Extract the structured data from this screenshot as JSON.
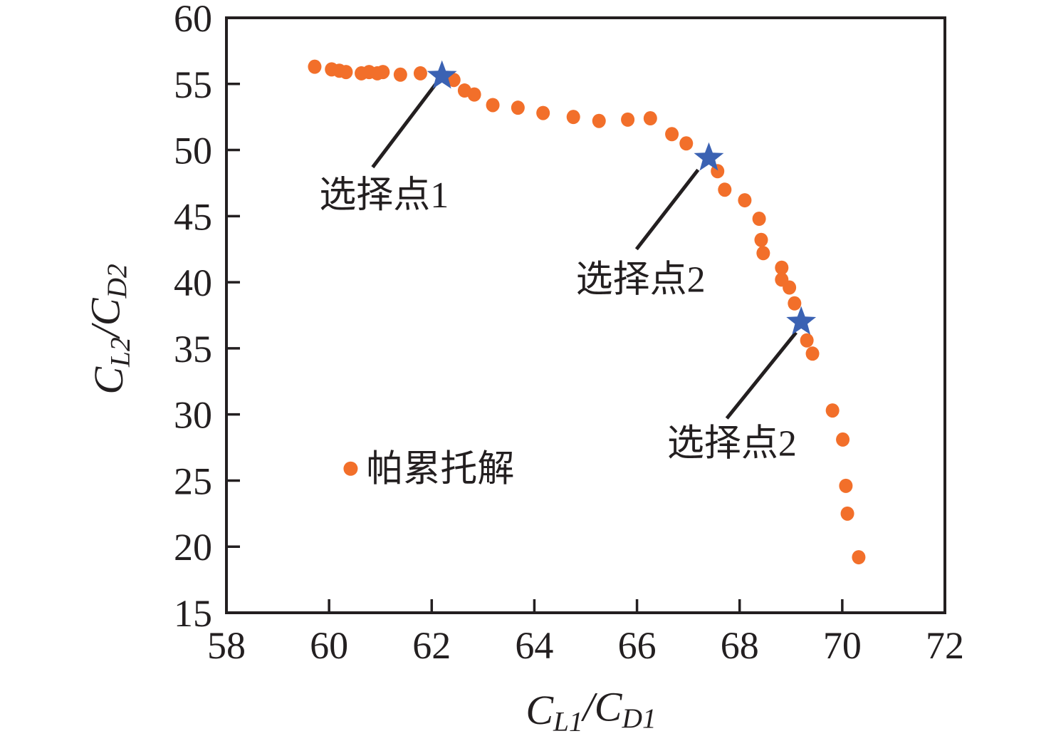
{
  "chart_data": {
    "type": "scatter",
    "xlabel": "C_L1/C_D1",
    "ylabel": "C_L2/C_D2",
    "xlabel_parts": [
      {
        "t": "C",
        "s": "i"
      },
      {
        "t": "L1",
        "s": "sub"
      },
      {
        "t": "/",
        "s": "i"
      },
      {
        "t": "C",
        "s": "i"
      },
      {
        "t": "D1",
        "s": "sub"
      }
    ],
    "ylabel_parts": [
      {
        "t": "C",
        "s": "i"
      },
      {
        "t": "L2",
        "s": "sub"
      },
      {
        "t": "/",
        "s": "i"
      },
      {
        "t": "C",
        "s": "i"
      },
      {
        "t": "D2",
        "s": "sub"
      }
    ],
    "xlim": [
      58,
      72
    ],
    "ylim": [
      15,
      60
    ],
    "x_ticks": [
      58,
      60,
      62,
      64,
      66,
      68,
      70,
      72
    ],
    "y_ticks": [
      15,
      20,
      25,
      30,
      35,
      40,
      45,
      50,
      55,
      60
    ],
    "grid": false,
    "legend_position": "inside-left-middle",
    "series": [
      {
        "name": "帕累托解",
        "marker": "circle",
        "color": "#F26F2A",
        "points": [
          [
            59.72,
            56.3
          ],
          [
            60.05,
            56.1
          ],
          [
            60.2,
            56.0
          ],
          [
            60.33,
            55.9
          ],
          [
            60.63,
            55.8
          ],
          [
            60.78,
            55.9
          ],
          [
            60.94,
            55.8
          ],
          [
            61.05,
            55.9
          ],
          [
            61.39,
            55.7
          ],
          [
            61.78,
            55.8
          ],
          [
            62.43,
            55.3
          ],
          [
            62.64,
            54.5
          ],
          [
            62.83,
            54.2
          ],
          [
            63.19,
            53.4
          ],
          [
            63.68,
            53.2
          ],
          [
            64.17,
            52.8
          ],
          [
            64.76,
            52.5
          ],
          [
            65.26,
            52.2
          ],
          [
            65.82,
            52.3
          ],
          [
            66.26,
            52.4
          ],
          [
            66.68,
            51.2
          ],
          [
            66.96,
            50.5
          ],
          [
            67.57,
            48.4
          ],
          [
            67.71,
            47.0
          ],
          [
            68.1,
            46.2
          ],
          [
            68.38,
            44.8
          ],
          [
            68.42,
            43.2
          ],
          [
            68.46,
            42.2
          ],
          [
            68.82,
            41.1
          ],
          [
            68.82,
            40.2
          ],
          [
            68.97,
            39.6
          ],
          [
            69.07,
            38.4
          ],
          [
            69.31,
            35.6
          ],
          [
            69.42,
            34.6
          ],
          [
            69.81,
            30.3
          ],
          [
            70.01,
            28.1
          ],
          [
            70.07,
            24.6
          ],
          [
            70.1,
            22.5
          ],
          [
            70.32,
            19.2
          ]
        ]
      },
      {
        "name": "选择点",
        "marker": "star",
        "color": "#3B62B3",
        "points": [
          [
            62.2,
            55.6
          ],
          [
            67.4,
            49.4
          ],
          [
            69.2,
            37.0
          ]
        ]
      }
    ],
    "annotations": [
      {
        "text": "选择点1",
        "target": [
          62.2,
          55.6
        ],
        "label_pos": [
          61.07,
          46.7
        ],
        "line": [
          [
            62.08,
            55.0
          ],
          [
            60.85,
            48.7
          ]
        ]
      },
      {
        "text": "选择点2",
        "target": [
          67.4,
          49.4
        ],
        "label_pos": [
          66.07,
          40.3
        ],
        "line": [
          [
            67.19,
            48.5
          ],
          [
            65.99,
            42.5
          ]
        ]
      },
      {
        "text": "选择点2",
        "target": [
          69.2,
          37.0
        ],
        "label_pos": [
          67.85,
          27.9
        ],
        "line": [
          [
            69.1,
            36.2
          ],
          [
            67.75,
            29.7
          ]
        ]
      }
    ],
    "legend": {
      "label": "帕累托解",
      "marker": "circle",
      "marker_color": "#F26F2A",
      "pos": [
        60.42,
        25.9
      ]
    },
    "colors": {
      "pareto": "#F26F2A",
      "selected": "#3B62B3",
      "axis": "#231F20",
      "text": "#231F20",
      "background": "#FFFFFF"
    }
  }
}
